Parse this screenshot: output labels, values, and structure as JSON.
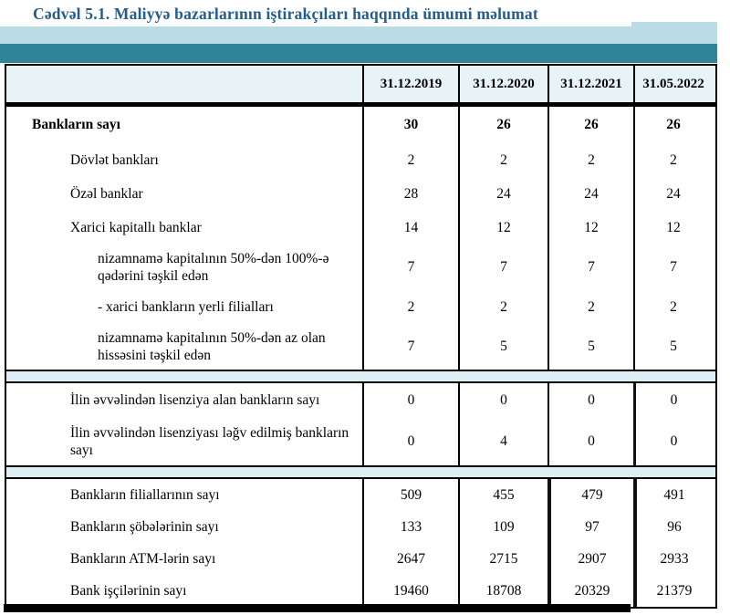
{
  "title": "Cədvəl 5.1. Maliyyə bazarlarının iştirakçıları haqqında ümumi məlumat",
  "colors": {
    "title_blue": "#235d8c",
    "band_light": "#b9dce6",
    "band_teal": "#2f8498",
    "header_bg": "#e8f3f8",
    "gap_bg": "#ddeef5",
    "border": "#000000"
  },
  "table": {
    "columns": [
      "31.12.2019",
      "31.12.2020",
      "31.12.2021",
      "31.05.2022"
    ],
    "sections": [
      {
        "rows": [
          {
            "label": "Bankların sayı",
            "indent": 1,
            "bold": true,
            "values": [
              "30",
              "26",
              "26",
              "26"
            ]
          },
          {
            "label": "Dövlət bankları",
            "indent": 2,
            "bold": false,
            "values": [
              "2",
              "2",
              "2",
              "2"
            ]
          },
          {
            "label": "Özəl banklar",
            "indent": 2,
            "bold": false,
            "values": [
              "28",
              "24",
              "24",
              "24"
            ]
          },
          {
            "label": "Xarici kapitallı banklar",
            "indent": 2,
            "bold": false,
            "values": [
              "14",
              "12",
              "12",
              "12"
            ]
          },
          {
            "label": "nizamnamə kapitalının 50%-dən 100%-ə qədərini təşkil edən",
            "indent": 3,
            "bold": false,
            "values": [
              "7",
              "7",
              "7",
              "7"
            ]
          },
          {
            "label": "-  xarici bankların yerli filialları",
            "indent": 3,
            "bold": false,
            "values": [
              "2",
              "2",
              "2",
              "2"
            ]
          },
          {
            "label": "nizamnamə kapitalının 50%-dən az olan hissəsini  təşkil edən",
            "indent": 3,
            "bold": false,
            "values": [
              "7",
              "5",
              "5",
              "5"
            ]
          }
        ]
      },
      {
        "rows": [
          {
            "label": "İlin əvvəlindən lisenziya alan bankların sayı",
            "indent": 2,
            "bold": false,
            "values": [
              "0",
              "0",
              "0",
              "0"
            ]
          },
          {
            "label": "İlin əvvəlindən lisenziyası ləğv edilmiş bankların sayı",
            "indent": 2,
            "bold": false,
            "values": [
              "0",
              "4",
              "0",
              "0"
            ]
          }
        ]
      },
      {
        "rows": [
          {
            "label": "Bankların filiallarının sayı",
            "indent": 2,
            "bold": false,
            "values": [
              "509",
              "455",
              "479",
              "491"
            ]
          },
          {
            "label": "Bankların şöbələrinin sayı",
            "indent": 2,
            "bold": false,
            "values": [
              "133",
              "109",
              "97",
              "96"
            ]
          },
          {
            "label": "Bankların ATM-lərin sayı",
            "indent": 2,
            "bold": false,
            "values": [
              "2647",
              "2715",
              "2907",
              "2933"
            ]
          },
          {
            "label": "Bank işçilərinin sayı",
            "indent": 2,
            "bold": false,
            "values": [
              "19460",
              "18708",
              "20329",
              "21379"
            ]
          }
        ]
      }
    ]
  }
}
